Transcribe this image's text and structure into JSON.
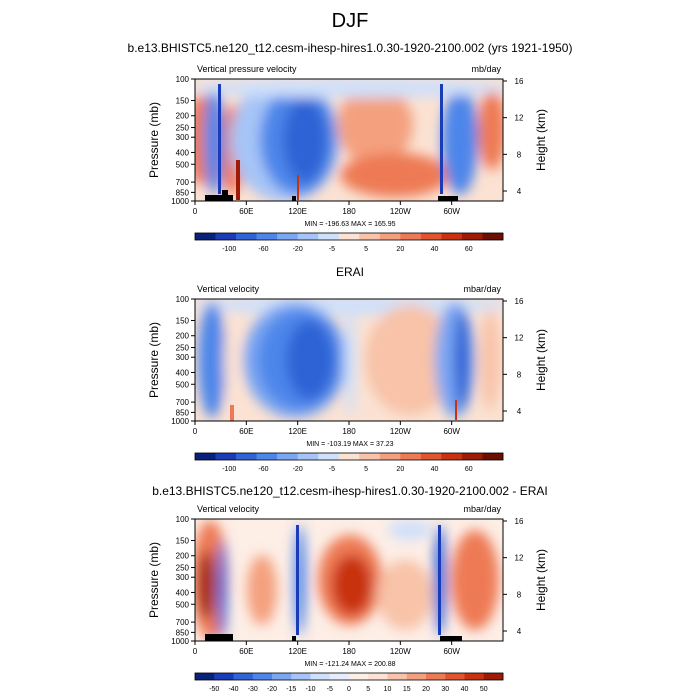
{
  "page_title": "DJF",
  "chart_data": [
    {
      "type": "heatmap",
      "title": "b.e13.BHISTC5.ne120_t12.cesm-ihesp-hires1.0.30-1920-2100.002 (yrs 1921-1950)",
      "left_label": "Vertical pressure velocity",
      "units": "mb/day",
      "xlabel": "",
      "ylabel": "Pressure (mb)",
      "y2label": "Height (km)",
      "x_ticks": [
        "0",
        "60E",
        "120E",
        "180",
        "120W",
        "60W"
      ],
      "y_ticks": [
        "100",
        "150",
        "200",
        "250",
        "300",
        "400",
        "500",
        "700",
        "850",
        "1000"
      ],
      "y2_ticks": [
        "4",
        "8",
        "12",
        "16"
      ],
      "stats": "MIN = -196.63  MAX = 165.95",
      "colorbar_levels": [
        "-100",
        "-60",
        "-20",
        "-5",
        "5",
        "20",
        "40",
        "60"
      ],
      "min": -196.63,
      "max": 165.95
    },
    {
      "type": "heatmap",
      "title": "ERAI",
      "left_label": "Vertical velocity",
      "units": "mbar/day",
      "xlabel": "",
      "ylabel": "Pressure (mb)",
      "y2label": "Height (km)",
      "x_ticks": [
        "0",
        "60E",
        "120E",
        "180",
        "120W",
        "60W"
      ],
      "y_ticks": [
        "100",
        "150",
        "200",
        "250",
        "300",
        "400",
        "500",
        "700",
        "850",
        "1000"
      ],
      "y2_ticks": [
        "4",
        "8",
        "12",
        "16"
      ],
      "stats": "MIN = -103.19  MAX = 37.23",
      "colorbar_levels": [
        "-100",
        "-60",
        "-20",
        "-5",
        "5",
        "20",
        "40",
        "60"
      ],
      "min": -103.19,
      "max": 37.23
    },
    {
      "type": "heatmap",
      "title": "b.e13.BHISTC5.ne120_t12.cesm-ihesp-hires1.0.30-1920-2100.002 - ERAI",
      "left_label": "Vertical velocity",
      "units": "mbar/day",
      "xlabel": "",
      "ylabel": "Pressure (mb)",
      "y2label": "Height (km)",
      "x_ticks": [
        "0",
        "60E",
        "120E",
        "180",
        "120W",
        "60W"
      ],
      "y_ticks": [
        "100",
        "150",
        "200",
        "250",
        "300",
        "400",
        "500",
        "700",
        "850",
        "1000"
      ],
      "y2_ticks": [
        "4",
        "8",
        "12",
        "16"
      ],
      "stats": "MIN = -121.24  MAX = 200.88",
      "colorbar_levels": [
        "-50",
        "-40",
        "-30",
        "-20",
        "-15",
        "-10",
        "-5",
        "0",
        "5",
        "10",
        "15",
        "20",
        "30",
        "40",
        "50"
      ],
      "min": -121.24,
      "max": 200.88
    }
  ],
  "colors": {
    "colorbar_standard": [
      "#08217a",
      "#1a3cb8",
      "#2f63d6",
      "#4d86ea",
      "#7aa6f2",
      "#a6c4f7",
      "#cfe0fa",
      "#fbe2d3",
      "#f8c3a8",
      "#f4a07e",
      "#ee7a55",
      "#e05430",
      "#c8320f",
      "#9e1b05",
      "#6e0e00"
    ],
    "colorbar_diff": [
      "#08217a",
      "#1a3cb8",
      "#2f63d6",
      "#4d86ea",
      "#7aa6f2",
      "#a6c4f7",
      "#cfe0fa",
      "#e6eefc",
      "#fdeee6",
      "#fbe2d3",
      "#f8c3a8",
      "#f4a07e",
      "#ee7a55",
      "#e05430",
      "#c8320f",
      "#9e1b05"
    ]
  }
}
